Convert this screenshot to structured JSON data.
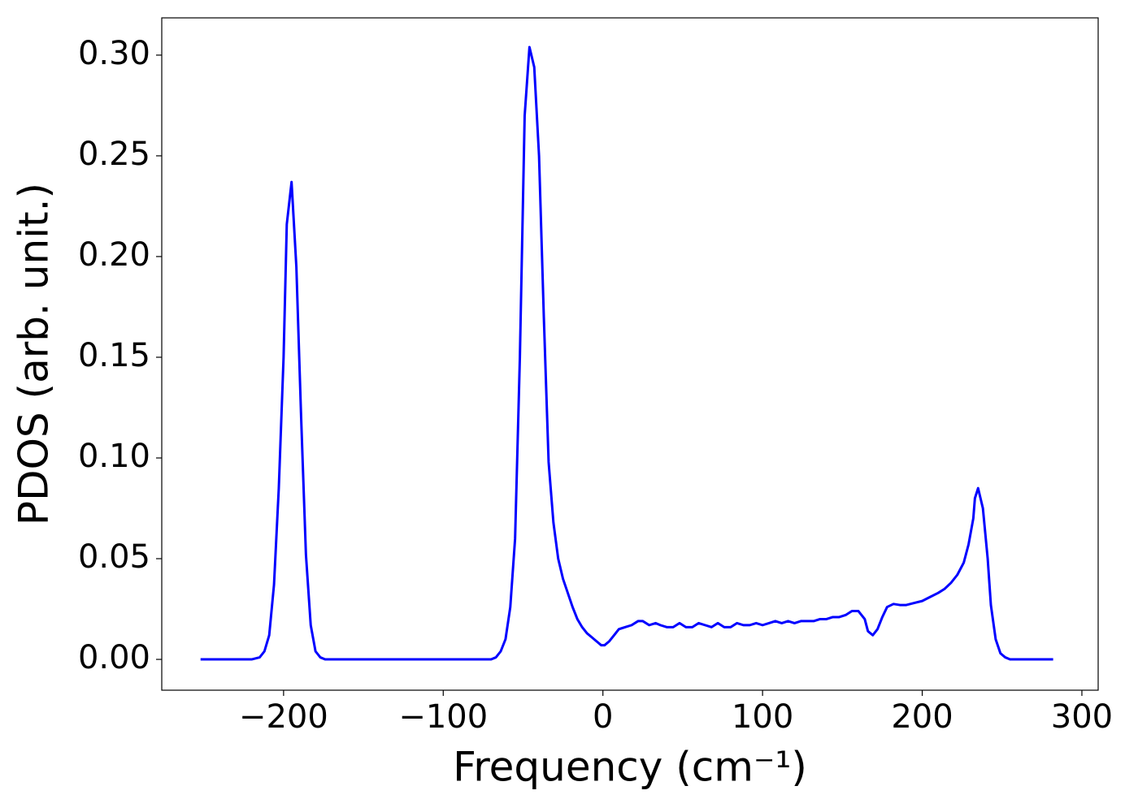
{
  "chart_data": {
    "type": "line",
    "xlabel": "Frequency (cm⁻¹)",
    "ylabel": "PDOS (arb. unit.)",
    "xlim": [
      -276.3,
      310.2
    ],
    "ylim": [
      -0.0153,
      0.3185
    ],
    "xticks": [
      {
        "value": -200,
        "label": "−200"
      },
      {
        "value": -100,
        "label": "−100"
      },
      0,
      100,
      200,
      300
    ],
    "yticks": [
      {
        "value": 0,
        "label": "0.00"
      },
      {
        "value": 0.05,
        "label": "0.05"
      },
      {
        "value": 0.1,
        "label": "0.10"
      },
      {
        "value": 0.15,
        "label": "0.15"
      },
      {
        "value": 0.2,
        "label": "0.20"
      },
      {
        "value": 0.25,
        "label": "0.25"
      },
      {
        "value": 0.3,
        "label": "0.30"
      }
    ],
    "grid": false,
    "series": [
      {
        "color": "#0000ff",
        "x": [
          -252,
          -220,
          -215,
          -212,
          -209,
          -206,
          -203,
          -200,
          -198,
          -195,
          -192,
          -189,
          -186,
          -183,
          -180,
          -177,
          -174,
          -70,
          -67,
          -64,
          -61,
          -58,
          -55,
          -52,
          -49,
          -46,
          -43,
          -40,
          -37,
          -34,
          -31,
          -28,
          -25,
          -22,
          -19,
          -16,
          -13,
          -10,
          -7,
          -4,
          -1,
          1,
          4,
          7,
          10,
          14,
          18,
          22,
          25,
          29,
          33,
          36,
          40,
          44,
          48,
          52,
          56,
          60,
          64,
          68,
          72,
          76,
          80,
          84,
          88,
          92,
          96,
          100,
          104,
          108,
          112,
          116,
          120,
          124,
          128,
          132,
          136,
          140,
          144,
          148,
          152,
          156,
          160,
          164,
          166,
          169,
          172,
          175,
          178,
          182,
          186,
          190,
          195,
          200,
          205,
          210,
          214,
          218,
          222,
          226,
          229,
          232,
          233,
          235,
          238,
          241,
          243,
          246,
          249,
          252,
          255,
          282
        ],
        "values": [
          0,
          0,
          0.001,
          0.004,
          0.012,
          0.037,
          0.085,
          0.15,
          0.216,
          0.237,
          0.195,
          0.12,
          0.052,
          0.017,
          0.004,
          0.001,
          0,
          0,
          0.001,
          0.004,
          0.01,
          0.026,
          0.06,
          0.15,
          0.27,
          0.304,
          0.294,
          0.25,
          0.17,
          0.098,
          0.068,
          0.05,
          0.04,
          0.033,
          0.026,
          0.02,
          0.016,
          0.013,
          0.011,
          0.009,
          0.007,
          0.007,
          0.009,
          0.012,
          0.015,
          0.016,
          0.017,
          0.019,
          0.019,
          0.017,
          0.018,
          0.017,
          0.016,
          0.016,
          0.018,
          0.016,
          0.016,
          0.018,
          0.017,
          0.016,
          0.018,
          0.016,
          0.016,
          0.018,
          0.017,
          0.017,
          0.018,
          0.017,
          0.018,
          0.019,
          0.018,
          0.019,
          0.018,
          0.019,
          0.019,
          0.019,
          0.02,
          0.02,
          0.021,
          0.021,
          0.022,
          0.024,
          0.024,
          0.02,
          0.014,
          0.012,
          0.015,
          0.021,
          0.026,
          0.0275,
          0.027,
          0.027,
          0.028,
          0.029,
          0.031,
          0.033,
          0.035,
          0.038,
          0.042,
          0.048,
          0.057,
          0.07,
          0.08,
          0.085,
          0.075,
          0.05,
          0.027,
          0.01,
          0.003,
          0.001,
          0,
          0
        ]
      }
    ]
  }
}
